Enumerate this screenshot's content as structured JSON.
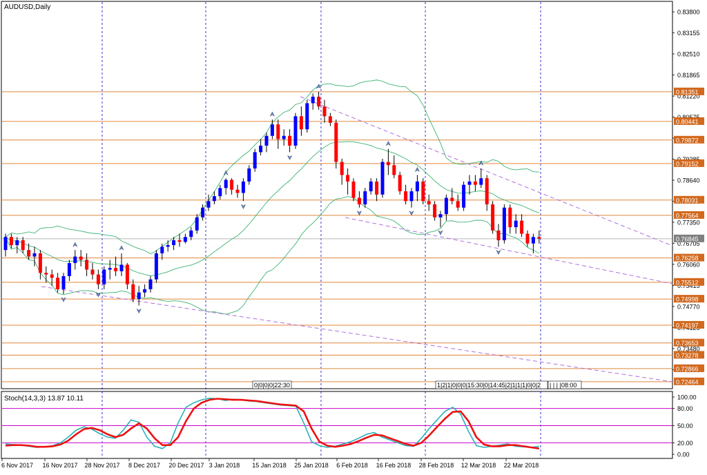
{
  "window": {
    "title": "AUDUSD,Daily"
  },
  "main_chart": {
    "price_scale": [
      "0.83800",
      "0.83155",
      "0.82510",
      "0.81865",
      "0.81220",
      "0.80575",
      "0.79930",
      "0.79285",
      "0.78640",
      "0.77995",
      "0.77350",
      "0.76705",
      "0.76060",
      "0.75415",
      "0.74770",
      "0.74125",
      "0.73480",
      "0.72835"
    ],
    "price_range": [
      0.7225,
      0.841
    ],
    "horizontal_levels": [
      {
        "value": 0.81351,
        "label": "0.81351"
      },
      {
        "value": 0.80441,
        "label": "0.80441"
      },
      {
        "value": 0.79872,
        "label": "0.79872"
      },
      {
        "value": 0.79152,
        "label": "0.79152"
      },
      {
        "value": 0.78031,
        "label": "0.78031"
      },
      {
        "value": 0.77564,
        "label": "0.77564"
      },
      {
        "value": 0.76258,
        "label": "0.76258"
      },
      {
        "value": 0.75512,
        "label": "0.75512"
      },
      {
        "value": 0.74998,
        "label": "0.74998"
      },
      {
        "value": 0.74197,
        "label": "0.74197"
      },
      {
        "value": 0.73653,
        "label": "0.73653"
      },
      {
        "value": 0.73278,
        "label": "0.73278"
      },
      {
        "value": 0.72866,
        "label": "0.72866"
      },
      {
        "value": 0.72464,
        "label": "0.72464"
      }
    ],
    "current_price": {
      "value": 0.76845,
      "label": "0.76845"
    },
    "event_markers": [
      {
        "text": "0|0|0|0|22:30"
      },
      {
        "text": "1|2|1|0|0|0|15:30|0|14:45|2|1|1|1|0|0|2"
      },
      {
        "text": "| | | |08:00"
      }
    ]
  },
  "stochastic": {
    "title": "Stoch(14,3,3) 13.87 10.11",
    "scale": [
      "100.00",
      "80.00",
      "50.00",
      "20.00",
      "0.00"
    ],
    "levels": [
      80,
      50,
      20
    ]
  },
  "time_axis": {
    "labels": [
      "6 Nov 2017",
      "16 Nov 2017",
      "28 Nov 2017",
      "8 Dec 2017",
      "20 Dec 2017",
      "3 Jan 2018",
      "15 Jan 2018",
      "25 Jan 2018",
      "6 Feb 2018",
      "16 Feb 2018",
      "28 Feb 2018",
      "12 Mar 2018",
      "22 Mar 2018"
    ]
  },
  "colors": {
    "bull": "#0000ff",
    "bear": "#ff0000",
    "level_line": "#e0863c",
    "level_label_bg": "#d2691e",
    "bollinger": "#3cb371",
    "trendline": "#b06ee0",
    "separator": "#0000cc",
    "stoch_main": "#2ab0b8",
    "stoch_signal": "#ee1111",
    "stoch_level": "#cc00cc",
    "current_price_bg": "#808080"
  },
  "chart_data": {
    "type": "candlestick",
    "symbol": "AUDUSD",
    "timeframe": "Daily",
    "x_tick_labels": [
      "6 Nov 2017",
      "16 Nov 2017",
      "28 Nov 2017",
      "8 Dec 2017",
      "20 Dec 2017",
      "3 Jan 2018",
      "15 Jan 2018",
      "25 Jan 2018",
      "6 Feb 2018",
      "16 Feb 2018",
      "28 Feb 2018",
      "12 Mar 2018",
      "22 Mar 2018"
    ],
    "ohlc": [
      [
        0.765,
        0.77,
        0.763,
        0.769
      ],
      [
        0.769,
        0.77,
        0.7655,
        0.7665
      ],
      [
        0.7665,
        0.769,
        0.764,
        0.768
      ],
      [
        0.768,
        0.769,
        0.764,
        0.765
      ],
      [
        0.765,
        0.767,
        0.762,
        0.763
      ],
      [
        0.763,
        0.766,
        0.76,
        0.764
      ],
      [
        0.764,
        0.765,
        0.756,
        0.758
      ],
      [
        0.758,
        0.76,
        0.755,
        0.7575
      ],
      [
        0.7575,
        0.759,
        0.754,
        0.7565
      ],
      [
        0.7565,
        0.758,
        0.752,
        0.753
      ],
      [
        0.753,
        0.758,
        0.7515,
        0.757
      ],
      [
        0.757,
        0.762,
        0.7555,
        0.761
      ],
      [
        0.761,
        0.765,
        0.759,
        0.763
      ],
      [
        0.763,
        0.765,
        0.76,
        0.762
      ],
      [
        0.762,
        0.764,
        0.757,
        0.759
      ],
      [
        0.759,
        0.761,
        0.756,
        0.7575
      ],
      [
        0.7575,
        0.759,
        0.753,
        0.7545
      ],
      [
        0.7545,
        0.76,
        0.753,
        0.759
      ],
      [
        0.759,
        0.762,
        0.756,
        0.7595
      ],
      [
        0.7595,
        0.763,
        0.757,
        0.7585
      ],
      [
        0.7585,
        0.764,
        0.757,
        0.7605
      ],
      [
        0.7605,
        0.761,
        0.753,
        0.7545
      ],
      [
        0.7545,
        0.756,
        0.749,
        0.75
      ],
      [
        0.75,
        0.754,
        0.748,
        0.752
      ],
      [
        0.752,
        0.7545,
        0.7505,
        0.753
      ],
      [
        0.753,
        0.757,
        0.752,
        0.756
      ],
      [
        0.756,
        0.765,
        0.755,
        0.764
      ],
      [
        0.764,
        0.767,
        0.762,
        0.766
      ],
      [
        0.766,
        0.768,
        0.7645,
        0.7665
      ],
      [
        0.7665,
        0.769,
        0.765,
        0.768
      ],
      [
        0.768,
        0.77,
        0.766,
        0.7675
      ],
      [
        0.7675,
        0.77,
        0.767,
        0.769
      ],
      [
        0.769,
        0.772,
        0.768,
        0.771
      ],
      [
        0.771,
        0.776,
        0.77,
        0.775
      ],
      [
        0.775,
        0.779,
        0.774,
        0.778
      ],
      [
        0.778,
        0.782,
        0.777,
        0.78
      ],
      [
        0.78,
        0.783,
        0.779,
        0.7815
      ],
      [
        0.7815,
        0.785,
        0.7805,
        0.784
      ],
      [
        0.784,
        0.787,
        0.782,
        0.7865
      ],
      [
        0.7865,
        0.787,
        0.782,
        0.7835
      ],
      [
        0.7835,
        0.785,
        0.781,
        0.7825
      ],
      [
        0.7825,
        0.787,
        0.78,
        0.786
      ],
      [
        0.786,
        0.791,
        0.785,
        0.79
      ],
      [
        0.79,
        0.796,
        0.789,
        0.795
      ],
      [
        0.795,
        0.799,
        0.794,
        0.797
      ],
      [
        0.797,
        0.801,
        0.795,
        0.8
      ],
      [
        0.8,
        0.805,
        0.799,
        0.8035
      ],
      [
        0.8035,
        0.805,
        0.796,
        0.799
      ],
      [
        0.799,
        0.802,
        0.797,
        0.8
      ],
      [
        0.8,
        0.802,
        0.795,
        0.797
      ],
      [
        0.797,
        0.807,
        0.796,
        0.806
      ],
      [
        0.806,
        0.809,
        0.8,
        0.802
      ],
      [
        0.802,
        0.811,
        0.801,
        0.81
      ],
      [
        0.81,
        0.813,
        0.808,
        0.812
      ],
      [
        0.812,
        0.8135,
        0.808,
        0.809
      ],
      [
        0.809,
        0.811,
        0.804,
        0.806
      ],
      [
        0.806,
        0.807,
        0.803,
        0.804
      ],
      [
        0.804,
        0.805,
        0.79,
        0.792
      ],
      [
        0.792,
        0.793,
        0.785,
        0.788
      ],
      [
        0.788,
        0.79,
        0.782,
        0.786
      ],
      [
        0.786,
        0.787,
        0.78,
        0.781
      ],
      [
        0.781,
        0.783,
        0.778,
        0.779
      ],
      [
        0.779,
        0.784,
        0.778,
        0.783
      ],
      [
        0.783,
        0.787,
        0.782,
        0.786
      ],
      [
        0.786,
        0.787,
        0.78,
        0.782
      ],
      [
        0.782,
        0.793,
        0.781,
        0.792
      ],
      [
        0.792,
        0.796,
        0.788,
        0.791
      ],
      [
        0.791,
        0.794,
        0.787,
        0.788
      ],
      [
        0.788,
        0.789,
        0.782,
        0.783
      ],
      [
        0.783,
        0.785,
        0.779,
        0.78
      ],
      [
        0.78,
        0.784,
        0.778,
        0.783
      ],
      [
        0.783,
        0.788,
        0.78,
        0.786
      ],
      [
        0.786,
        0.787,
        0.779,
        0.78
      ],
      [
        0.78,
        0.782,
        0.777,
        0.779
      ],
      [
        0.779,
        0.78,
        0.774,
        0.775
      ],
      [
        0.775,
        0.777,
        0.772,
        0.776
      ],
      [
        0.776,
        0.782,
        0.774,
        0.781
      ],
      [
        0.781,
        0.784,
        0.779,
        0.78
      ],
      [
        0.78,
        0.782,
        0.777,
        0.778
      ],
      [
        0.778,
        0.786,
        0.777,
        0.785
      ],
      [
        0.785,
        0.788,
        0.782,
        0.786
      ],
      [
        0.786,
        0.788,
        0.783,
        0.785
      ],
      [
        0.785,
        0.79,
        0.784,
        0.787
      ],
      [
        0.787,
        0.788,
        0.777,
        0.779
      ],
      [
        0.779,
        0.78,
        0.77,
        0.771
      ],
      [
        0.771,
        0.773,
        0.766,
        0.768
      ],
      [
        0.768,
        0.779,
        0.767,
        0.778
      ],
      [
        0.778,
        0.779,
        0.77,
        0.772
      ],
      [
        0.772,
        0.776,
        0.77,
        0.774
      ],
      [
        0.774,
        0.776,
        0.769,
        0.77
      ],
      [
        0.77,
        0.771,
        0.766,
        0.767
      ],
      [
        0.767,
        0.77,
        0.764,
        0.769
      ],
      [
        0.769,
        0.771,
        0.767,
        0.7685
      ]
    ],
    "price_levels": [
      0.81351,
      0.80441,
      0.79872,
      0.79152,
      0.78031,
      0.77564,
      0.76258,
      0.75512,
      0.74998,
      0.74197,
      0.73653,
      0.73278,
      0.72866,
      0.72464
    ],
    "last_price": 0.76845,
    "ylim": [
      0.7225,
      0.841
    ],
    "stochastic": {
      "name": "Stoch(14,3,3)",
      "k_last": 13.87,
      "d_last": 10.11,
      "ylim": [
        0,
        100
      ],
      "levels": [
        80,
        50,
        20
      ],
      "k": [
        18,
        17,
        16,
        14,
        12,
        13,
        15,
        20,
        30,
        42,
        48,
        44,
        36,
        30,
        28,
        42,
        60,
        56,
        30,
        14,
        10,
        20,
        55,
        82,
        90,
        95,
        98,
        97,
        94,
        96,
        95,
        93,
        92,
        90,
        88,
        86,
        85,
        84,
        55,
        22,
        15,
        12,
        14,
        18,
        22,
        28,
        35,
        38,
        30,
        25,
        20,
        15,
        14,
        28,
        45,
        60,
        75,
        82,
        70,
        40,
        15,
        12,
        14,
        16,
        18,
        14,
        13,
        12,
        14
      ],
      "d": [
        15,
        16,
        16,
        15,
        13,
        13,
        14,
        17,
        24,
        35,
        44,
        46,
        42,
        35,
        30,
        34,
        45,
        54,
        45,
        28,
        16,
        16,
        30,
        58,
        80,
        90,
        95,
        97,
        96,
        95,
        95,
        94,
        93,
        91,
        89,
        87,
        86,
        85,
        75,
        45,
        22,
        15,
        13,
        15,
        18,
        23,
        29,
        34,
        33,
        28,
        23,
        18,
        15,
        20,
        33,
        48,
        62,
        74,
        75,
        58,
        30,
        17,
        14,
        14,
        16,
        16,
        14,
        12,
        10
      ]
    }
  }
}
